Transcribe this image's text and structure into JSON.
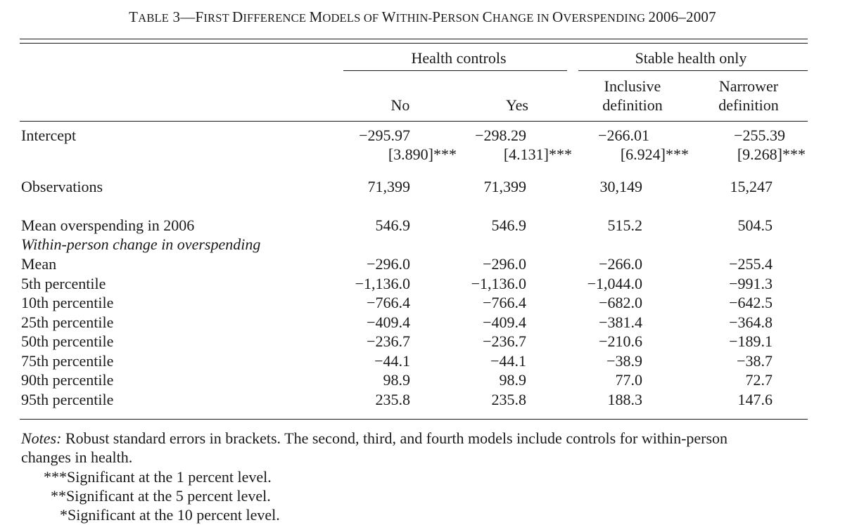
{
  "title": {
    "prefix_cap": "T",
    "prefix_rest": "ABLE",
    "number": "3—",
    "words": [
      {
        "cap": "F",
        "rest": "IRST "
      },
      {
        "cap": "D",
        "rest": "IFFERENCE "
      },
      {
        "cap": "M",
        "rest": "ODELS OF "
      },
      {
        "cap": "W",
        "rest": "ITHIN-"
      },
      {
        "cap": "P",
        "rest": "ERSON "
      },
      {
        "cap": "C",
        "rest": "HANGE IN "
      },
      {
        "cap": "O",
        "rest": "VERSPENDING "
      }
    ],
    "years": "2006–2007"
  },
  "header": {
    "group1": "Health controls",
    "group2": "Stable health only",
    "col1": "No",
    "col2": "Yes",
    "col3_line1": "Inclusive",
    "col3_line2": "definition",
    "col4_line1": "Narrower",
    "col4_line2": "definition"
  },
  "rows": {
    "intercept": {
      "label": "Intercept",
      "values": [
        "−295.97",
        "−298.29",
        "−266.01",
        "−255.39"
      ],
      "se": [
        "[3.890]***",
        "[4.131]***",
        "[6.924]***",
        "[9.268]***"
      ]
    },
    "observations": {
      "label": "Observations",
      "values": [
        "71,399",
        "71,399",
        "30,149",
        "15,247"
      ]
    },
    "mean_2006": {
      "label": "Mean overspending in 2006",
      "values": [
        "546.9",
        "546.9",
        "515.2",
        "504.5"
      ]
    },
    "section_label": "Within-person change in overspending",
    "stats": [
      {
        "label": "Mean",
        "values": [
          "−296.0",
          "−296.0",
          "−266.0",
          "−255.4"
        ]
      },
      {
        "label": "5th percentile",
        "values": [
          "−1,136.0",
          "−1,136.0",
          "−1,044.0",
          "−991.3"
        ]
      },
      {
        "label": "10th percentile",
        "values": [
          "−766.4",
          "−766.4",
          "−682.0",
          "−642.5"
        ]
      },
      {
        "label": "25th percentile",
        "values": [
          "−409.4",
          "−409.4",
          "−381.4",
          "−364.8"
        ]
      },
      {
        "label": "50th percentile",
        "values": [
          "−236.7",
          "−236.7",
          "−210.6",
          "−189.1"
        ]
      },
      {
        "label": "75th percentile",
        "values": [
          "−44.1",
          "−44.1",
          "−38.9",
          "−38.7"
        ]
      },
      {
        "label": "90th percentile",
        "values": [
          "98.9",
          "98.9",
          "77.0",
          "72.7"
        ]
      },
      {
        "label": "95th percentile",
        "values": [
          "235.8",
          "235.8",
          "188.3",
          "147.6"
        ]
      }
    ]
  },
  "notes": {
    "lead": "Notes:",
    "text_line1": " Robust standard errors in brackets. The second, third, and fourth models include controls for within-person",
    "text_line2": "changes in health.",
    "sig1": "***Significant at the 1 percent level.",
    "sig5": "**Significant at the 5 percent level.",
    "sig10": "*Significant at the 10 percent level."
  }
}
